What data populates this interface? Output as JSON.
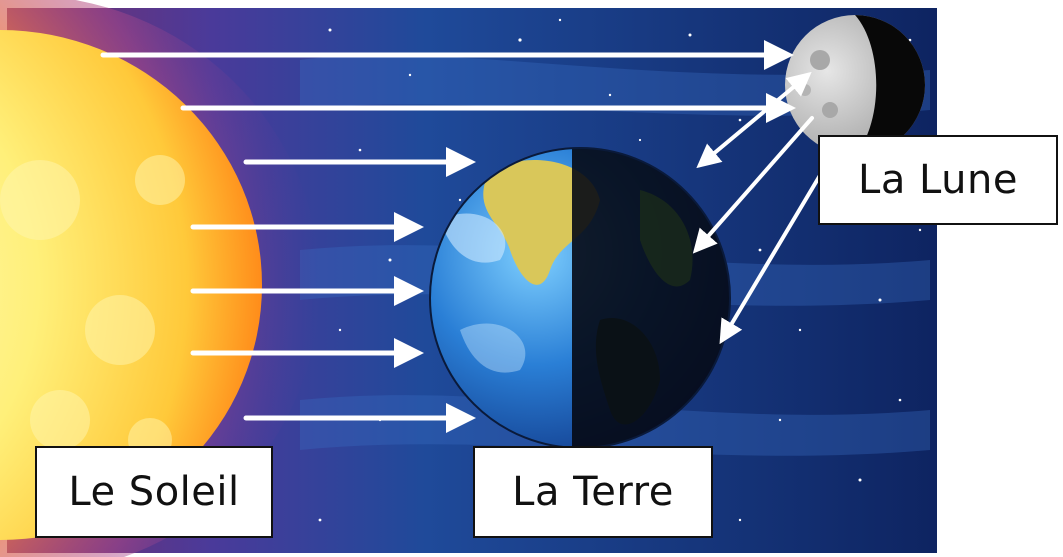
{
  "labels": {
    "sun": "Le Soleil",
    "earth": "La Terre",
    "moon": "La Lune"
  },
  "colors": {
    "space_dark": "#0b1a4a",
    "space_mid": "#1f4a9a",
    "sun_core": "#fff27a",
    "sun_edge": "#ff9a1f",
    "sun_glow": "#9a4a9c",
    "earth_ocean": "#2a7fd6",
    "earth_land": "#d9c75a",
    "moon_surface": "#c9c9c9",
    "arrow": "#ffffff"
  },
  "icons": [
    "sun",
    "earth",
    "moon",
    "light-ray-arrow",
    "reflected-light-arrow"
  ]
}
